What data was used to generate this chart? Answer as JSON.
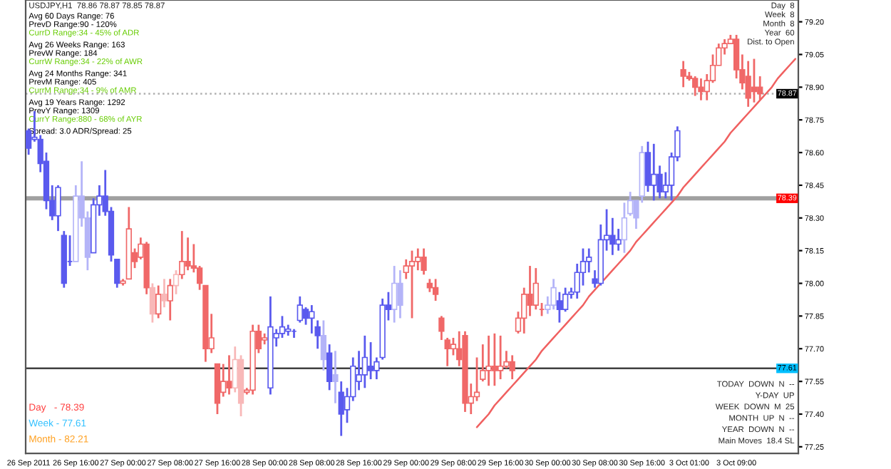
{
  "chart_data": {
    "type": "candlestick",
    "title": "USDJPY,H1  78.86 78.87 78.85 78.87",
    "categories": [
      "26 Sep 2011",
      null,
      null,
      null,
      null,
      null,
      null,
      null,
      "26 Sep 16:00",
      null,
      null,
      null,
      null,
      null,
      null,
      null,
      "27 Sep 00:00",
      null,
      null,
      null,
      null,
      null,
      null,
      null,
      "27 Sep 08:00",
      null,
      null,
      null,
      null,
      null,
      null,
      null,
      "27 Sep 16:00",
      null,
      null,
      null,
      null,
      null,
      null,
      null,
      "28 Sep 00:00",
      null,
      null,
      null,
      null,
      null,
      null,
      null,
      "28 Sep 08:00",
      null,
      null,
      null,
      null,
      null,
      null,
      null,
      "28 Sep 16:00",
      null,
      null,
      null,
      null,
      null,
      null,
      null,
      "29 Sep 00:00",
      null,
      null,
      null,
      null,
      null,
      null,
      null,
      "29 Sep 08:00",
      null,
      null,
      null,
      null,
      null,
      null,
      null,
      "29 Sep 16:00",
      null,
      null,
      null,
      null,
      null,
      null,
      null,
      "30 Sep 00:00",
      null,
      null,
      null,
      null,
      null,
      null,
      null,
      "30 Sep 08:00",
      null,
      null,
      null,
      null,
      null,
      null,
      null,
      "30 Sep 16:00",
      null,
      null,
      null,
      null,
      null,
      null,
      null,
      "3 Oct 01:00",
      null,
      null,
      null,
      null,
      null,
      null,
      null,
      "3 Oct 09:00",
      null,
      null,
      null,
      null,
      null,
      null,
      null,
      null,
      null,
      null
    ],
    "ohlc": [
      [
        78.7,
        78.71,
        78.59,
        78.62
      ],
      [
        78.66,
        78.79,
        78.65,
        78.67
      ],
      [
        78.66,
        78.68,
        78.51,
        78.55
      ],
      [
        78.56,
        78.6,
        78.34,
        78.38
      ],
      [
        78.38,
        78.45,
        78.29,
        78.31
      ],
      [
        78.31,
        78.45,
        78.24,
        78.44
      ],
      [
        78.22,
        78.24,
        77.98,
        78.0
      ],
      [
        78.1,
        78.22,
        78.08,
        78.1
      ],
      [
        78.1,
        78.45,
        78.1,
        78.4
      ],
      [
        78.4,
        78.56,
        78.26,
        78.3
      ],
      [
        78.3,
        78.33,
        78.06,
        78.12
      ],
      [
        78.14,
        78.39,
        78.14,
        78.36
      ],
      [
        78.36,
        78.45,
        78.31,
        78.4
      ],
      [
        78.4,
        78.52,
        78.31,
        78.33
      ],
      [
        78.33,
        78.35,
        78.1,
        78.13
      ],
      [
        78.11,
        78.11,
        77.98,
        78.0
      ],
      [
        78.0,
        78.02,
        77.99,
        78.01
      ],
      [
        78.02,
        78.35,
        78.02,
        78.25
      ],
      [
        78.14,
        78.16,
        78.07,
        78.1
      ],
      [
        78.12,
        78.21,
        78.11,
        78.18
      ],
      [
        78.18,
        78.19,
        77.95,
        77.98
      ],
      [
        77.98,
        78.0,
        77.82,
        77.86
      ],
      [
        77.86,
        77.99,
        77.84,
        77.95
      ],
      [
        77.95,
        78.02,
        77.89,
        77.92
      ],
      [
        77.92,
        78.02,
        77.83,
        77.99
      ],
      [
        77.99,
        78.06,
        77.95,
        78.04
      ],
      [
        78.04,
        78.24,
        78.02,
        78.1
      ],
      [
        78.1,
        78.21,
        78.06,
        78.08
      ],
      [
        78.08,
        78.18,
        78.05,
        78.07
      ],
      [
        78.07,
        78.08,
        77.97,
        78.0
      ],
      [
        77.99,
        77.99,
        77.64,
        77.7
      ],
      [
        77.7,
        77.86,
        77.68,
        77.75
      ],
      [
        77.63,
        77.63,
        77.4,
        77.45
      ],
      [
        77.5,
        77.63,
        77.48,
        77.55
      ],
      [
        77.55,
        77.67,
        77.49,
        77.52
      ],
      [
        77.52,
        77.71,
        77.5,
        77.65
      ],
      [
        77.65,
        77.67,
        77.39,
        77.45
      ],
      [
        77.5,
        77.52,
        77.49,
        77.51
      ],
      [
        77.51,
        77.81,
        77.49,
        77.78
      ],
      [
        77.78,
        77.81,
        77.68,
        77.7
      ],
      [
        77.74,
        77.77,
        77.72,
        77.75
      ],
      [
        77.52,
        77.94,
        77.49,
        77.8
      ],
      [
        77.75,
        77.79,
        77.71,
        77.77
      ],
      [
        77.77,
        77.85,
        77.75,
        77.8
      ],
      [
        77.78,
        77.81,
        77.76,
        77.79
      ],
      [
        77.78,
        77.79,
        77.75,
        77.78
      ],
      [
        77.83,
        77.94,
        77.82,
        77.9
      ],
      [
        77.88,
        77.89,
        77.81,
        77.84
      ],
      [
        77.84,
        77.9,
        77.77,
        77.87
      ],
      [
        77.8,
        77.83,
        77.7,
        77.76
      ],
      [
        77.76,
        77.83,
        77.6,
        77.65
      ],
      [
        77.68,
        77.72,
        77.51,
        77.55
      ],
      [
        77.58,
        77.69,
        77.45,
        77.55
      ],
      [
        77.5,
        77.55,
        77.3,
        77.4
      ],
      [
        77.42,
        77.52,
        77.36,
        77.48
      ],
      [
        77.48,
        77.66,
        77.46,
        77.62
      ],
      [
        77.55,
        77.69,
        77.51,
        77.58
      ],
      [
        77.58,
        77.76,
        77.52,
        77.66
      ],
      [
        77.62,
        77.73,
        77.56,
        77.6
      ],
      [
        77.6,
        77.66,
        77.56,
        77.64
      ],
      [
        77.66,
        77.93,
        77.65,
        77.9
      ],
      [
        77.9,
        77.96,
        77.83,
        77.88
      ],
      [
        77.88,
        78.08,
        77.82,
        78.0
      ],
      [
        78.0,
        78.06,
        77.84,
        77.9
      ],
      [
        78.05,
        78.11,
        78.02,
        78.08
      ],
      [
        78.08,
        78.15,
        77.84,
        78.1
      ],
      [
        78.1,
        78.16,
        78.06,
        78.12
      ],
      [
        78.12,
        78.16,
        78.04,
        78.06
      ],
      [
        78.0,
        78.02,
        77.96,
        77.98
      ],
      [
        77.98,
        78.02,
        77.92,
        77.95
      ],
      [
        77.84,
        77.85,
        77.74,
        77.78
      ],
      [
        77.74,
        77.75,
        77.62,
        77.7
      ],
      [
        77.7,
        77.75,
        77.67,
        77.72
      ],
      [
        77.7,
        77.78,
        77.62,
        77.65
      ],
      [
        77.76,
        77.78,
        77.41,
        77.45
      ],
      [
        77.45,
        77.54,
        77.4,
        77.48
      ],
      [
        77.48,
        77.66,
        77.46,
        77.5
      ],
      [
        77.56,
        77.72,
        77.55,
        77.6
      ],
      [
        77.6,
        77.76,
        77.53,
        77.62
      ],
      [
        77.62,
        77.77,
        77.53,
        77.6
      ],
      [
        77.6,
        77.76,
        77.56,
        77.62
      ],
      [
        77.62,
        77.69,
        77.61,
        77.64
      ],
      [
        77.64,
        77.67,
        77.56,
        77.6
      ],
      [
        77.78,
        77.87,
        77.77,
        77.84
      ],
      [
        77.84,
        77.98,
        77.77,
        77.95
      ],
      [
        77.95,
        78.08,
        77.85,
        77.9
      ],
      [
        77.9,
        78.07,
        77.88,
        78.0
      ],
      [
        77.88,
        77.91,
        77.85,
        77.88
      ],
      [
        77.88,
        77.94,
        77.86,
        77.9
      ],
      [
        77.9,
        78.02,
        77.88,
        77.98
      ],
      [
        77.92,
        77.96,
        77.82,
        77.88
      ],
      [
        77.88,
        77.98,
        77.87,
        77.95
      ],
      [
        77.95,
        77.98,
        77.93,
        77.96
      ],
      [
        77.96,
        78.09,
        77.93,
        78.05
      ],
      [
        78.05,
        78.16,
        77.99,
        78.1
      ],
      [
        78.1,
        78.16,
        78.05,
        78.12
      ],
      [
        78.02,
        78.06,
        77.98,
        78.0
      ],
      [
        78.0,
        78.27,
        77.99,
        78.2
      ],
      [
        78.2,
        78.34,
        78.15,
        78.22
      ],
      [
        78.22,
        78.3,
        78.13,
        78.18
      ],
      [
        78.18,
        78.25,
        78.15,
        78.2
      ],
      [
        78.2,
        78.37,
        78.14,
        78.3
      ],
      [
        78.32,
        78.42,
        78.31,
        78.38
      ],
      [
        78.38,
        78.38,
        78.25,
        78.3
      ],
      [
        78.4,
        78.63,
        78.37,
        78.6
      ],
      [
        78.6,
        78.65,
        78.42,
        78.45
      ],
      [
        78.45,
        78.64,
        78.38,
        78.5
      ],
      [
        78.5,
        78.54,
        78.39,
        78.42
      ],
      [
        78.42,
        78.51,
        78.39,
        78.45
      ],
      [
        78.45,
        78.6,
        78.38,
        78.58
      ],
      [
        78.58,
        78.72,
        78.56,
        78.7
      ],
      [
        78.98,
        79.02,
        78.9,
        78.95
      ],
      [
        78.95,
        78.97,
        78.93,
        78.94
      ],
      [
        78.94,
        78.95,
        78.86,
        78.9
      ],
      [
        78.9,
        78.94,
        78.84,
        78.88
      ],
      [
        78.88,
        78.96,
        78.84,
        78.93
      ],
      [
        78.93,
        79.05,
        78.92,
        79.0
      ],
      [
        79.0,
        79.1,
        79.0,
        79.08
      ],
      [
        79.08,
        79.12,
        79.05,
        79.1
      ],
      [
        79.1,
        79.14,
        79.1,
        79.12
      ],
      [
        79.12,
        79.14,
        78.94,
        78.98
      ],
      [
        78.98,
        79.05,
        78.89,
        78.92
      ],
      [
        78.95,
        79.02,
        78.81,
        78.85
      ],
      [
        78.9,
        79.03,
        78.83,
        78.88
      ],
      [
        78.9,
        78.95,
        78.84,
        78.87
      ],
      null,
      null,
      null,
      null,
      null,
      null
    ],
    "colors": [
      "#5a5aee",
      "#5a5aee",
      "#5a5aee",
      "#5a5aee",
      "#5a5aee",
      "#5a5aee",
      "#5a5aee",
      "#5a5aee",
      "#b4b4f8",
      "#b4b4f8",
      "#b4b4f8",
      "#5a5aee",
      "#5a5aee",
      "#5a5aee",
      "#5a5aee",
      "#5a5aee",
      "#f06868",
      "#f06868",
      "#f06868",
      "#f06868",
      "#f06868",
      "#f8b8b8",
      "#f06868",
      "#f8b8b8",
      "#f06868",
      "#f8b8b8",
      "#f06868",
      "#f06868",
      "#f06868",
      "#f06868",
      "#f06868",
      "#f06868",
      "#f06868",
      "#f06868",
      "#f06868",
      "#f8b8b8",
      "#f8b8b8",
      "#f06868",
      "#f06868",
      "#f06868",
      "#f06868",
      "#5a5aee",
      "#5a5aee",
      "#5a5aee",
      "#5a5aee",
      "#5a5aee",
      "#5a5aee",
      "#5a5aee",
      "#5a5aee",
      "#5a5aee",
      "#b4b4f8",
      "#5a5aee",
      "#b4b4f8",
      "#5a5aee",
      "#5a5aee",
      "#5a5aee",
      "#5a5aee",
      "#5a5aee",
      "#5a5aee",
      "#5a5aee",
      "#5a5aee",
      "#5a5aee",
      "#b4b4f8",
      "#b4b4f8",
      "#f06868",
      "#f06868",
      "#f06868",
      "#f06868",
      "#f06868",
      "#f06868",
      "#f06868",
      "#f06868",
      "#f06868",
      "#f06868",
      "#f06868",
      "#f06868",
      "#f06868",
      "#f06868",
      "#f06868",
      "#f06868",
      "#f06868",
      "#f06868",
      "#f06868",
      "#f06868",
      "#f06868",
      "#f06868",
      "#f06868",
      "#f06868",
      "#b4b4f8",
      "#b4b4f8",
      "#5a5aee",
      "#5a5aee",
      "#5a5aee",
      "#5a5aee",
      "#5a5aee",
      "#5a5aee",
      "#5a5aee",
      "#5a5aee",
      "#5a5aee",
      "#5a5aee",
      "#5a5aee",
      "#b4b4f8",
      "#b4b4f8",
      "#b4b4f8",
      "#b4b4f8",
      "#5a5aee",
      "#5a5aee",
      "#5a5aee",
      "#5a5aee",
      "#5a5aee",
      "#5a5aee",
      "#f06868",
      "#f06868",
      "#f06868",
      "#f06868",
      "#f06868",
      "#f06868",
      "#f06868",
      "#f06868",
      "#f06868",
      "#f06868",
      "#f06868",
      "#f06868",
      "#f06868",
      "#f06868",
      null,
      null,
      null,
      null,
      null,
      null
    ],
    "series": [
      {
        "type": "line",
        "color": "#f06060",
        "values": [
          null,
          null,
          null,
          null,
          null,
          null,
          null,
          null,
          null,
          null,
          null,
          null,
          null,
          null,
          null,
          null,
          null,
          null,
          null,
          null,
          null,
          null,
          null,
          null,
          null,
          null,
          null,
          null,
          null,
          null,
          null,
          null,
          null,
          null,
          null,
          null,
          null,
          null,
          null,
          null,
          null,
          null,
          null,
          null,
          null,
          null,
          null,
          null,
          null,
          null,
          null,
          null,
          null,
          null,
          null,
          null,
          null,
          null,
          null,
          null,
          null,
          null,
          null,
          null,
          null,
          null,
          null,
          null,
          null,
          null,
          null,
          null,
          null,
          null,
          null,
          null,
          77.34,
          77.37,
          77.4,
          77.44,
          77.47,
          77.5,
          77.53,
          77.56,
          77.59,
          77.62,
          77.65,
          77.69,
          77.72,
          77.75,
          77.78,
          77.81,
          77.84,
          77.87,
          77.9,
          77.94,
          77.97,
          78.0,
          78.03,
          78.06,
          78.09,
          78.12,
          78.15,
          78.19,
          78.22,
          78.25,
          78.28,
          78.31,
          78.34,
          78.37,
          78.4,
          78.44,
          78.47,
          78.5,
          78.53,
          78.56,
          78.59,
          78.62,
          78.65,
          78.69,
          78.72,
          78.75,
          78.78,
          78.81,
          78.84,
          78.87,
          78.9,
          78.94,
          78.97,
          79.0,
          79.03
        ]
      }
    ],
    "ylim": [
      77.22,
      79.3
    ],
    "yticks": [
      {
        "value": 79.2,
        "label": "79.20"
      },
      {
        "value": 79.05,
        "label": "79.05"
      },
      {
        "value": 78.9,
        "label": "78.90"
      },
      {
        "value": 78.75,
        "label": "78.75"
      },
      {
        "value": 78.6,
        "label": "78.60"
      },
      {
        "value": 78.45,
        "label": "78.45"
      },
      {
        "value": 78.3,
        "label": "78.30"
      },
      {
        "value": 78.15,
        "label": "78.15"
      },
      {
        "value": 78.0,
        "label": "78.00"
      },
      {
        "value": 77.85,
        "label": "77.85"
      },
      {
        "value": 77.7,
        "label": "77.70"
      },
      {
        "value": 77.55,
        "label": "77.55"
      },
      {
        "value": 77.4,
        "label": "77.40"
      },
      {
        "value": 77.25,
        "label": "77.25"
      }
    ],
    "ref_lines": [
      {
        "axis": "y",
        "value": 78.87,
        "label": "78.87",
        "color": "#b0b0b0",
        "line_style": "dotted"
      },
      {
        "axis": "y",
        "value": 78.39,
        "label": "78.39",
        "color": "#a0a0a0",
        "line_style": "solid"
      },
      {
        "axis": "y",
        "value": 77.61,
        "label": "77.61",
        "color": "#404040",
        "line_style": "solid"
      }
    ],
    "annotations": [
      "Avg 60 Days Range: 76",
      "PrevD Range:90 - 120%",
      "CurrD Range:34 - 45% of ADR",
      "Avg 26 Weeks Range: 163",
      "PrevW Range: 184",
      "CurrW Range:34 - 22% of AWR",
      "Avg 24 Months Range: 341",
      "PrevM Range: 405",
      "CurrM Range:34 - 9% of AMR",
      "Avg 19 Years Range: 1292",
      "PrevY Range: 1309",
      "CurrY Range:880 - 68% of AYR",
      "Spread: 3.0 ADR/Spread: 25",
      "Day  8",
      "Week  8",
      "Month  8",
      "Year  60",
      "Dist. to Open",
      "Day   - 78.39",
      "Week - 77.61",
      "Month - 82.21",
      "TODAY  DOWN  N  --",
      "Y-DAY  UP",
      "WEEK  DOWN  M  25",
      "MONTH  UP  N  --",
      "YEAR  DOWN  N  --",
      "Main Moves  18.4 SL"
    ],
    "grid": false,
    "legend": false
  }
}
